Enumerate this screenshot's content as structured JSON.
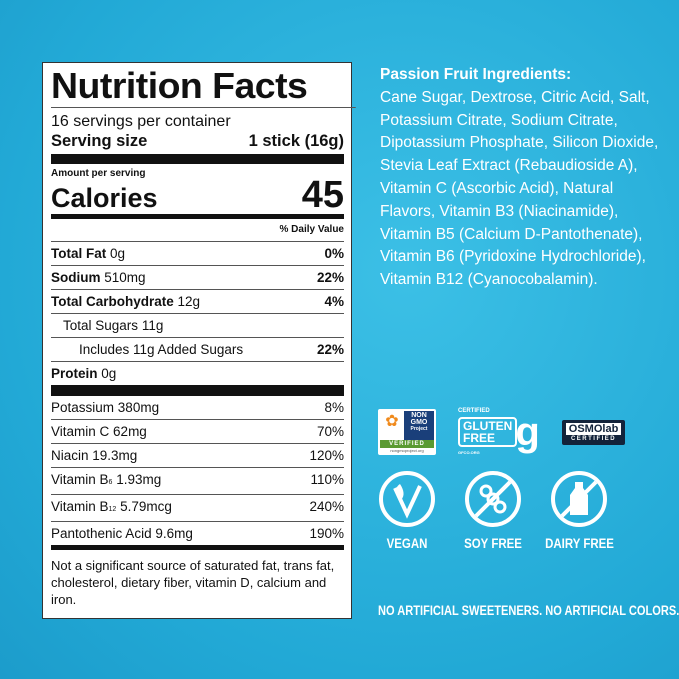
{
  "label": {
    "title": "Nutrition Facts",
    "servings": "16 servings per container",
    "serving_size_label": "Serving size",
    "serving_size_value": "1 stick (16g)",
    "amount_per_serving": "Amount per serving",
    "calories_label": "Calories",
    "calories_value": "45",
    "daily_value_header": "% Daily Value",
    "nutrients": [
      {
        "name": "Total Fat",
        "amount": "0g",
        "dv": "0%"
      },
      {
        "name": "Sodium",
        "amount": "510mg",
        "dv": "22%"
      },
      {
        "name": "Total Carbohydrate",
        "amount": "12g",
        "dv": "4%"
      },
      {
        "name": "Total Sugars",
        "amount": "11g",
        "dv": ""
      },
      {
        "name": "Includes 11g Added Sugars",
        "amount": "",
        "dv": "22%"
      },
      {
        "name": "Protein",
        "amount": "0g",
        "dv": ""
      }
    ],
    "micros": [
      {
        "name": "Potassium",
        "amount": "380mg",
        "dv": "8%"
      },
      {
        "name": "Vitamin C",
        "amount": "62mg",
        "dv": "70%"
      },
      {
        "name": "Niacin",
        "amount": "19.3mg",
        "dv": "120%"
      },
      {
        "name": "Vitamin B",
        "sub": "6",
        "amount": "1.93mg",
        "dv": "110%"
      },
      {
        "name": "Vitamin B",
        "sub": "12",
        "amount": "5.79mcg",
        "dv": "240%"
      },
      {
        "name": "Pantothenic Acid",
        "amount": "9.6mg",
        "dv": "190%"
      }
    ],
    "footnote": "Not a significant source of saturated fat, trans fat, cholesterol, dietary fiber, vitamin D, calcium and iron."
  },
  "ingredients": {
    "heading": "Passion Fruit Ingredients:",
    "text": "Cane Sugar, Dextrose, Citric Acid, Salt, Potassium Citrate, Sodium Citrate, Dipotassium Phosphate, Silicon Dioxide, Stevia Leaf Extract (Rebaudioside A), Vitamin C (Ascorbic Acid), Natural Flavors, Vitamin B3 (Niacinamide), Vitamin B5 (Calcium D-Pantothenate), Vitamin B6 (Pyridoxine Hydrochloride), Vitamin B12 (Cyanocobalamin)."
  },
  "badges": {
    "nongmo": {
      "line1": "NON",
      "line2": "GMO",
      "line3": "Project",
      "verified": "VERIFIED",
      "url": "nongmoproject.org"
    },
    "gluten": {
      "certified": "CERTIFIED",
      "line1": "GLUTEN",
      "line2": "FREE",
      "url": "GFCO.ORG"
    },
    "osmo": {
      "name": "OSMOlab",
      "certified": "CERTIFIED"
    }
  },
  "icons": [
    {
      "icon": "vegan-leaf-icon",
      "label": "VEGAN"
    },
    {
      "icon": "soy-free-icon",
      "label": "SOY FREE"
    },
    {
      "icon": "dairy-free-icon",
      "label": "DAIRY FREE"
    }
  ],
  "tagline": "NO ARTIFICIAL SWEETENERS. NO ARTIFICIAL COLORS.",
  "colors": {
    "background": "#2ab3dd",
    "text": "#ffffff"
  }
}
